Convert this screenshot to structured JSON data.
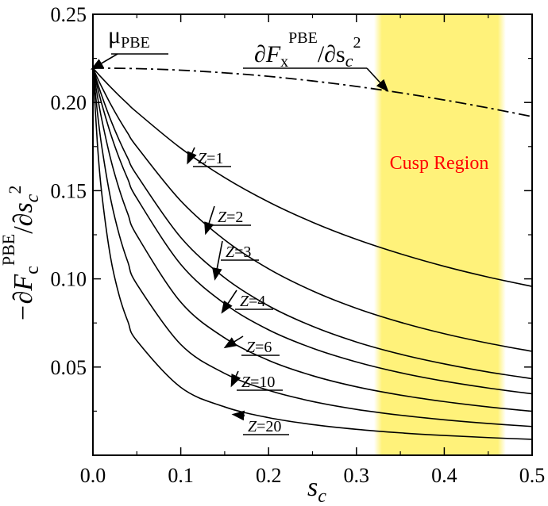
{
  "chart_data": {
    "type": "line",
    "title": "",
    "xlabel": "s_c",
    "ylabel": "-∂F_c^PBE/∂s_c^2",
    "xlim": [
      0.0,
      0.5
    ],
    "ylim": [
      0.0,
      0.25
    ],
    "x_ticks": [
      "0.0",
      "0.1",
      "0.2",
      "0.3",
      "0.4",
      "0.5"
    ],
    "y_ticks": [
      "0.05",
      "0.10",
      "0.15",
      "0.20",
      "0.25"
    ],
    "x": [
      0.0,
      0.05,
      0.1,
      0.15,
      0.2,
      0.25,
      0.3,
      0.35,
      0.4,
      0.45,
      0.5
    ],
    "shaded_region": {
      "label": "Cusp Region",
      "x_range": [
        0.32,
        0.47
      ],
      "color": "#fff27a",
      "label_color": "#ff0000"
    },
    "annotations": {
      "mu_pbe": {
        "symbol": "μ",
        "sub": "PBE",
        "x": 0.0,
        "y": 0.2195
      },
      "fx_label": {
        "main": "∂F",
        "sub": "x",
        "sup": "PBE",
        "tail": "/∂s",
        "tail_sub": "c",
        "tail_sup": "2"
      }
    },
    "series": [
      {
        "name": "∂Fx^PBE/∂s_c^2",
        "style": "dashdot",
        "values": [
          0.2195,
          0.2192,
          0.2183,
          0.2168,
          0.2148,
          0.2122,
          0.2091,
          0.2055,
          0.2014,
          0.1969,
          0.192
        ]
      },
      {
        "name": "Z=1",
        "label": "Z=1",
        "style": "solid",
        "arrow_x": 0.11,
        "values": [
          0.2195,
          0.1945,
          0.1741,
          0.1574,
          0.1436,
          0.1321,
          0.1224,
          0.1142,
          0.1071,
          0.101,
          0.0957
        ]
      },
      {
        "name": "Z=2",
        "label": "Z=2",
        "style": "solid",
        "arrow_x": 0.13,
        "values": [
          0.2195,
          0.1749,
          0.1442,
          0.1221,
          0.1057,
          0.0932,
          0.0833,
          0.0754,
          0.0689,
          0.0635,
          0.0589
        ]
      },
      {
        "name": "Z=3",
        "label": "Z=3",
        "style": "solid",
        "arrow_x": 0.14,
        "values": [
          0.2195,
          0.1588,
          0.1235,
          0.1006,
          0.0847,
          0.0731,
          0.0642,
          0.0573,
          0.0518,
          0.0472,
          0.0434
        ]
      },
      {
        "name": "Z=4",
        "label": "Z=4",
        "style": "solid",
        "arrow_x": 0.15,
        "values": [
          0.2195,
          0.1457,
          0.1082,
          0.0859,
          0.0711,
          0.0607,
          0.0529,
          0.0468,
          0.042,
          0.0381,
          0.0348
        ]
      },
      {
        "name": "Z=6",
        "label": "Z=6",
        "style": "solid",
        "arrow_x": 0.155,
        "values": [
          0.2195,
          0.1247,
          0.0868,
          0.0665,
          0.0538,
          0.0451,
          0.0388,
          0.0341,
          0.0304,
          0.0274,
          0.0249
        ]
      },
      {
        "name": "Z=10",
        "label": "Z=10",
        "style": "solid",
        "arrow_x": 0.16,
        "values": [
          0.2195,
          0.097,
          0.0628,
          0.0464,
          0.0368,
          0.0305,
          0.026,
          0.0227,
          0.0201,
          0.018,
          0.0163
        ]
      },
      {
        "name": "Z=20",
        "label": "Z=20",
        "style": "solid",
        "arrow_x": 0.165,
        "values": [
          0.2195,
          0.0649,
          0.0385,
          0.0274,
          0.0213,
          0.0174,
          0.0147,
          0.0127,
          0.0112,
          0.01,
          0.009
        ]
      }
    ]
  }
}
